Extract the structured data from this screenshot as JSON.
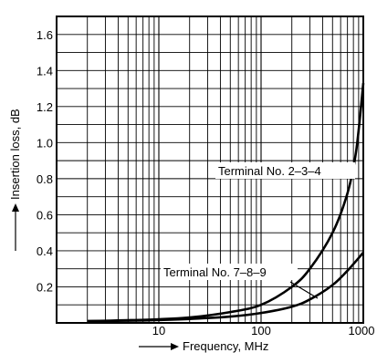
{
  "chart_data": {
    "type": "line",
    "xlabel": "Frequency, MHz",
    "ylabel": "Insertion loss, dB",
    "x_scale": "log",
    "xlim": [
      1,
      1000
    ],
    "ylim": [
      0,
      1.7
    ],
    "grid": true,
    "x_tick_labels": [
      {
        "value": 10,
        "label": "10"
      },
      {
        "value": 100,
        "label": "100"
      },
      {
        "value": 1000,
        "label": "1000"
      }
    ],
    "y_tick_labels": [
      {
        "value": 0.2,
        "label": "0.2"
      },
      {
        "value": 0.4,
        "label": "0.4"
      },
      {
        "value": 0.6,
        "label": "0.6"
      },
      {
        "value": 0.8,
        "label": "0.8"
      },
      {
        "value": 1.0,
        "label": "1.0"
      },
      {
        "value": 1.2,
        "label": "1.2"
      },
      {
        "value": 1.4,
        "label": "1.4"
      },
      {
        "value": 1.6,
        "label": "1.6"
      }
    ],
    "series": [
      {
        "name": "Terminal No. 2–3–4",
        "x": [
          2,
          5,
          10,
          20,
          50,
          100,
          200,
          300,
          500,
          700,
          850,
          1000
        ],
        "y": [
          0.01,
          0.015,
          0.02,
          0.03,
          0.06,
          0.1,
          0.2,
          0.3,
          0.5,
          0.72,
          0.95,
          1.33
        ]
      },
      {
        "name": "Terminal No. 7–8–9",
        "x": [
          2,
          5,
          10,
          20,
          50,
          100,
          200,
          300,
          500,
          700,
          1000
        ],
        "y": [
          0.01,
          0.012,
          0.016,
          0.022,
          0.035,
          0.055,
          0.09,
          0.13,
          0.21,
          0.29,
          0.39
        ]
      }
    ]
  }
}
